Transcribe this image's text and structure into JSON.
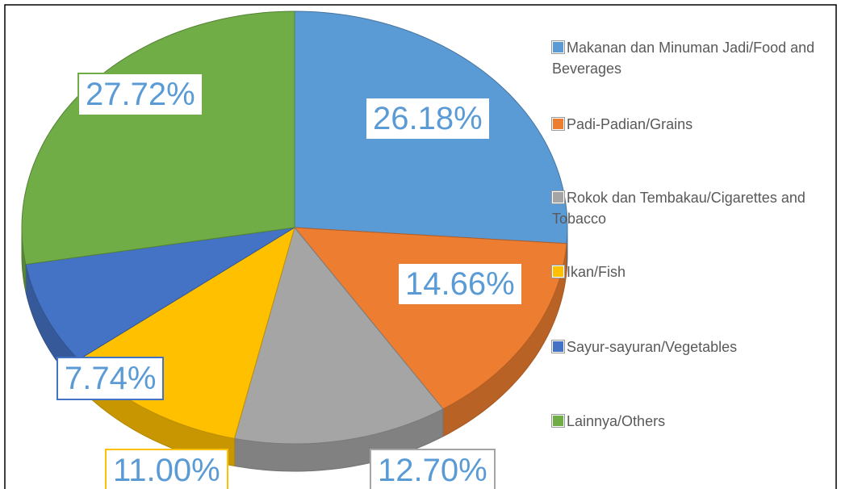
{
  "chart_data": {
    "type": "pie",
    "categories": [
      "Makanan dan Minuman Jadi/Food and Beverages",
      "Padi-Padian/Grains",
      "Rokok dan Tembakau/Cigarettes and Tobacco",
      "Ikan/Fish",
      "Sayur-sayuran/Vegetables",
      "Lainnya/Others"
    ],
    "values": [
      26.18,
      14.66,
      12.7,
      11.0,
      7.74,
      27.72
    ],
    "value_labels": [
      "26.18%",
      "14.66%",
      "12.70%",
      "11.00%",
      "7.74%",
      "27.72%"
    ],
    "colors": [
      "#5b9bd5",
      "#ed7d31",
      "#a5a5a5",
      "#ffc000",
      "#4472c4",
      "#70ad47"
    ],
    "legend": "right"
  }
}
